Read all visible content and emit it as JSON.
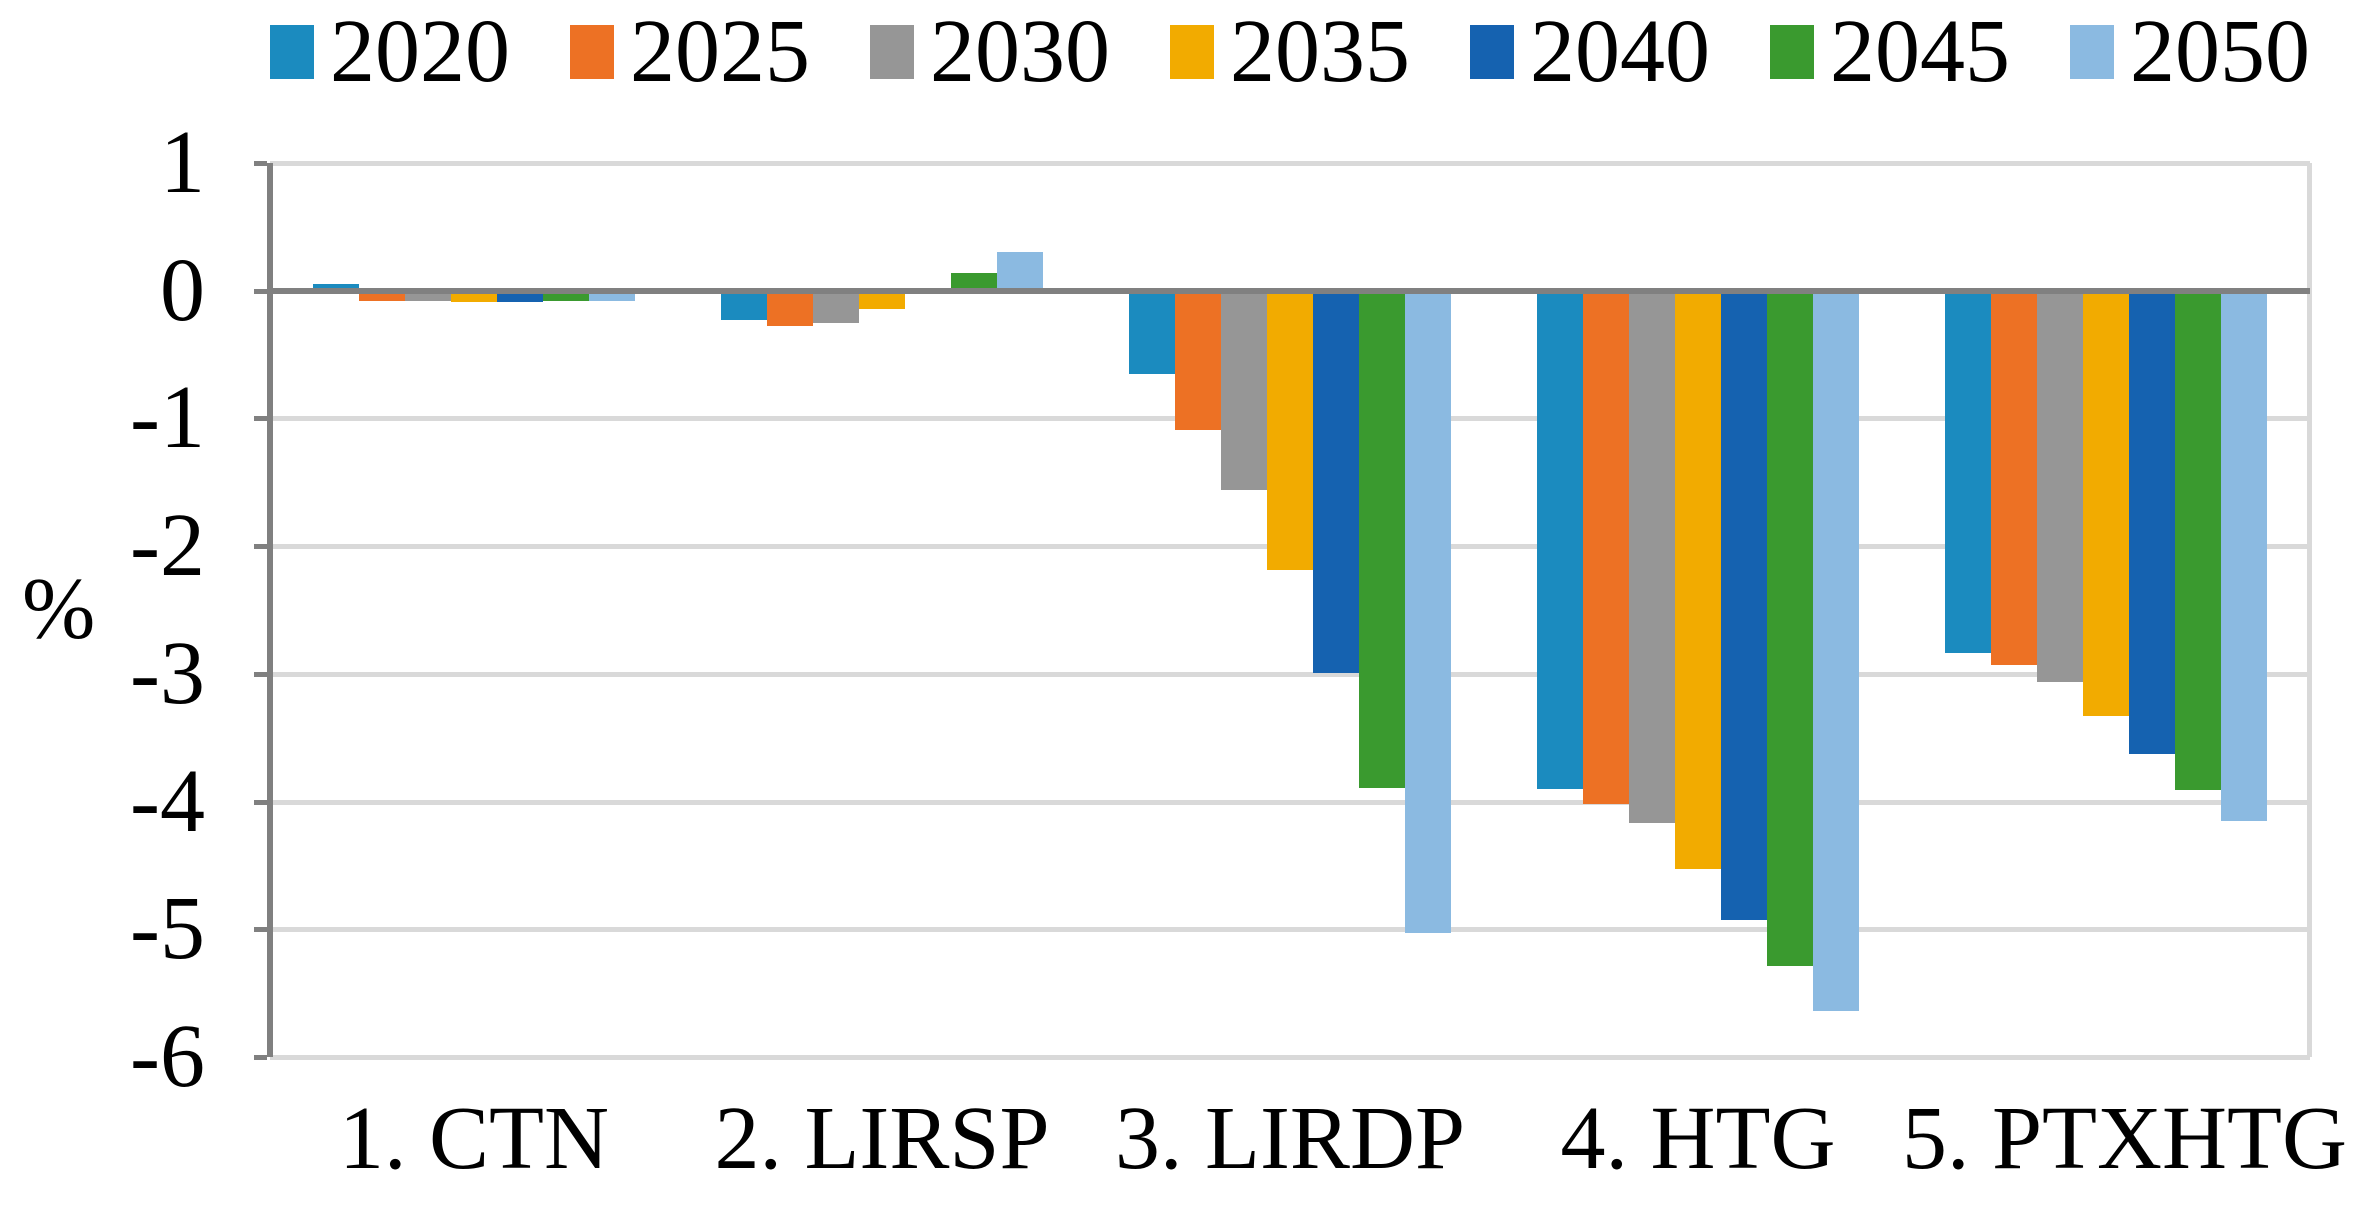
{
  "chart_data": {
    "type": "bar",
    "title": "",
    "ylabel": "%",
    "xlabel": "",
    "ylim": [
      -6,
      1
    ],
    "yticks": [
      1,
      0,
      -1,
      -2,
      -3,
      -4,
      -5,
      -6
    ],
    "grid": true,
    "legend_position": "top",
    "categories": [
      "1. CTN",
      "2. LIRSP",
      "3. LIRDP",
      "4. HTG",
      "5. PTXHTG"
    ],
    "series": [
      {
        "name": "2020",
        "color": "#1B8BBF",
        "values": [
          0.05,
          -0.23,
          -0.65,
          -3.9,
          -2.84
        ]
      },
      {
        "name": "2025",
        "color": "#ED7124",
        "values": [
          -0.08,
          -0.28,
          -1.09,
          -4.02,
          -2.93
        ]
      },
      {
        "name": "2030",
        "color": "#969696",
        "values": [
          -0.08,
          -0.25,
          -1.56,
          -4.17,
          -3.06
        ]
      },
      {
        "name": "2035",
        "color": "#F2AB00",
        "values": [
          -0.09,
          -0.14,
          -2.19,
          -4.53,
          -3.33
        ]
      },
      {
        "name": "2040",
        "color": "#1562B0",
        "values": [
          -0.09,
          -0.01,
          -2.99,
          -4.93,
          -3.63
        ]
      },
      {
        "name": "2045",
        "color": "#3A9A2F",
        "values": [
          -0.08,
          0.14,
          -3.89,
          -5.29,
          -3.91
        ]
      },
      {
        "name": "2050",
        "color": "#8BBAE1",
        "values": [
          -0.08,
          0.3,
          -5.03,
          -5.64,
          -4.15
        ]
      }
    ],
    "colors": {
      "gridline": "#D9D9D9",
      "axis": "#808080",
      "text": "#000000",
      "background": "#FFFFFF"
    }
  }
}
